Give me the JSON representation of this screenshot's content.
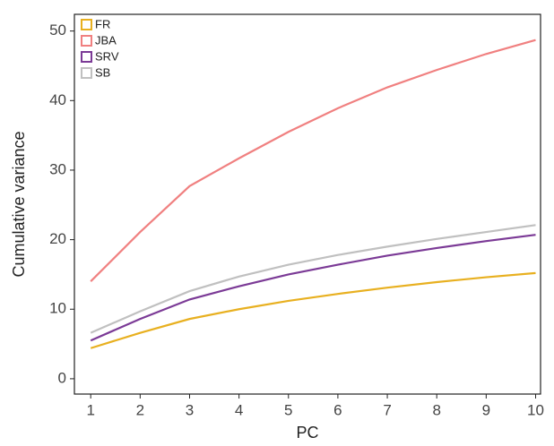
{
  "chart_data": {
    "type": "line",
    "x_label": "PC",
    "y_label": "Cumulative variance",
    "x": [
      1,
      2,
      3,
      4,
      5,
      6,
      7,
      8,
      9,
      10
    ],
    "series": [
      {
        "name": "FR",
        "color": "#e8b020",
        "values": [
          4.4,
          6.6,
          8.6,
          10.0,
          11.2,
          12.2,
          13.1,
          13.9,
          14.6,
          15.2
        ]
      },
      {
        "name": "JBA",
        "color": "#f08080",
        "values": [
          14.0,
          21.1,
          27.7,
          31.7,
          35.5,
          38.9,
          41.9,
          44.4,
          46.7,
          48.7
        ]
      },
      {
        "name": "SRV",
        "color": "#7b3a96",
        "values": [
          5.5,
          8.6,
          11.4,
          13.3,
          15.0,
          16.4,
          17.7,
          18.8,
          19.8,
          20.7
        ]
      },
      {
        "name": "SB",
        "color": "#c0c0c0",
        "values": [
          6.6,
          9.7,
          12.6,
          14.7,
          16.4,
          17.8,
          19.0,
          20.1,
          21.1,
          22.1
        ]
      }
    ],
    "xlim": [
      0.67,
      10.1
    ],
    "ylim": [
      -2.2,
      52.4
    ],
    "xticks": [
      1,
      2,
      3,
      4,
      5,
      6,
      7,
      8,
      9,
      10
    ],
    "yticks": [
      0,
      10,
      20,
      30,
      40,
      50
    ],
    "grid": false,
    "legend": "upper left"
  }
}
